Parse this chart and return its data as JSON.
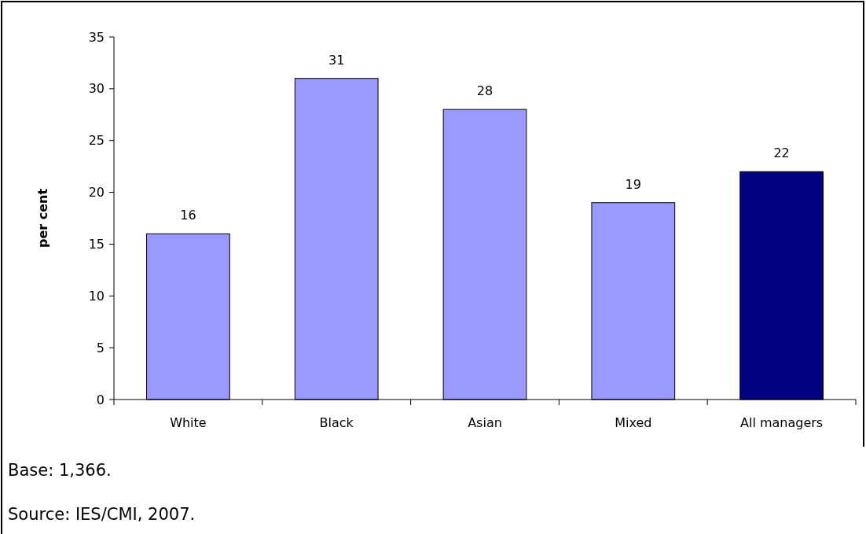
{
  "chart_data": {
    "type": "bar",
    "ylabel": "per cent",
    "categories": [
      "White",
      "Black",
      "Asian",
      "Mixed",
      "All managers"
    ],
    "values": [
      16,
      31,
      28,
      19,
      22
    ],
    "colors": [
      "#9999ff",
      "#9999ff",
      "#9999ff",
      "#9999ff",
      "#000080"
    ],
    "ylim": [
      0,
      35
    ],
    "yticks": [
      0,
      5,
      10,
      15,
      20,
      25,
      30,
      35
    ],
    "data_labels": true,
    "grid": false,
    "annotations": [
      "Base: 1,366.",
      "Source: IES/CMI, 2007."
    ]
  }
}
